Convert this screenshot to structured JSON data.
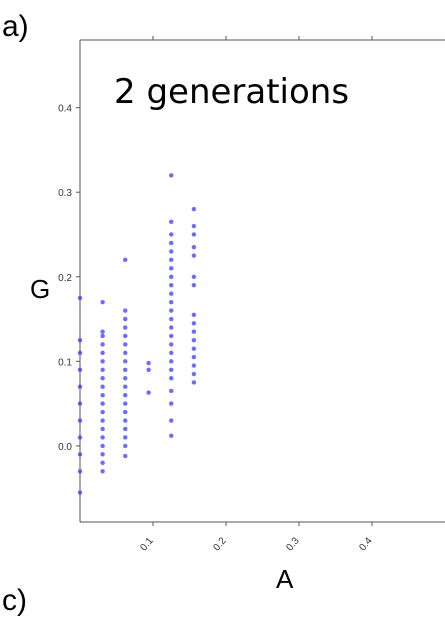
{
  "panel_labels": {
    "top": "a)",
    "bottom": "c)"
  },
  "chart_data": {
    "type": "scatter",
    "title": "2 generations",
    "xlabel": "A",
    "ylabel": "G",
    "xlim": [
      0.0,
      0.5
    ],
    "ylim": [
      -0.09,
      0.48
    ],
    "xticks": [
      0.1,
      0.2,
      0.3,
      0.4
    ],
    "xtick_labels": [
      "0.1",
      "0.2",
      "0.3",
      "0.4"
    ],
    "yticks": [
      0.0,
      0.1,
      0.2,
      0.3,
      0.4
    ],
    "ytick_labels": [
      "0.0",
      "0.1",
      "0.2",
      "0.3",
      "0.4"
    ],
    "grid": false,
    "point_color": "#3a3aff",
    "points": [
      {
        "x": 0.0,
        "y": -0.055
      },
      {
        "x": 0.0,
        "y": -0.03
      },
      {
        "x": 0.0,
        "y": -0.01
      },
      {
        "x": 0.0,
        "y": 0.01
      },
      {
        "x": 0.0,
        "y": 0.03
      },
      {
        "x": 0.0,
        "y": 0.05
      },
      {
        "x": 0.0,
        "y": 0.07
      },
      {
        "x": 0.0,
        "y": 0.09
      },
      {
        "x": 0.0,
        "y": 0.11
      },
      {
        "x": 0.0,
        "y": 0.125
      },
      {
        "x": 0.0,
        "y": 0.175
      },
      {
        "x": 0.031,
        "y": -0.03
      },
      {
        "x": 0.031,
        "y": -0.02
      },
      {
        "x": 0.031,
        "y": -0.01
      },
      {
        "x": 0.031,
        "y": 0.0
      },
      {
        "x": 0.031,
        "y": 0.01
      },
      {
        "x": 0.031,
        "y": 0.02
      },
      {
        "x": 0.031,
        "y": 0.03
      },
      {
        "x": 0.031,
        "y": 0.04
      },
      {
        "x": 0.031,
        "y": 0.05
      },
      {
        "x": 0.031,
        "y": 0.06
      },
      {
        "x": 0.031,
        "y": 0.07
      },
      {
        "x": 0.031,
        "y": 0.08
      },
      {
        "x": 0.031,
        "y": 0.09
      },
      {
        "x": 0.031,
        "y": 0.1
      },
      {
        "x": 0.031,
        "y": 0.11
      },
      {
        "x": 0.031,
        "y": 0.12
      },
      {
        "x": 0.031,
        "y": 0.13
      },
      {
        "x": 0.031,
        "y": 0.135
      },
      {
        "x": 0.031,
        "y": 0.17
      },
      {
        "x": 0.062,
        "y": -0.012
      },
      {
        "x": 0.062,
        "y": 0.0
      },
      {
        "x": 0.062,
        "y": 0.01
      },
      {
        "x": 0.062,
        "y": 0.02
      },
      {
        "x": 0.062,
        "y": 0.03
      },
      {
        "x": 0.062,
        "y": 0.04
      },
      {
        "x": 0.062,
        "y": 0.05
      },
      {
        "x": 0.062,
        "y": 0.06
      },
      {
        "x": 0.062,
        "y": 0.07
      },
      {
        "x": 0.062,
        "y": 0.08
      },
      {
        "x": 0.062,
        "y": 0.09
      },
      {
        "x": 0.062,
        "y": 0.1
      },
      {
        "x": 0.062,
        "y": 0.11
      },
      {
        "x": 0.062,
        "y": 0.12
      },
      {
        "x": 0.062,
        "y": 0.13
      },
      {
        "x": 0.062,
        "y": 0.14
      },
      {
        "x": 0.062,
        "y": 0.15
      },
      {
        "x": 0.062,
        "y": 0.16
      },
      {
        "x": 0.062,
        "y": 0.22
      },
      {
        "x": 0.094,
        "y": 0.063
      },
      {
        "x": 0.094,
        "y": 0.09
      },
      {
        "x": 0.094,
        "y": 0.098
      },
      {
        "x": 0.125,
        "y": 0.012
      },
      {
        "x": 0.125,
        "y": 0.03
      },
      {
        "x": 0.125,
        "y": 0.05
      },
      {
        "x": 0.125,
        "y": 0.065
      },
      {
        "x": 0.125,
        "y": 0.08
      },
      {
        "x": 0.125,
        "y": 0.09
      },
      {
        "x": 0.125,
        "y": 0.1
      },
      {
        "x": 0.125,
        "y": 0.11
      },
      {
        "x": 0.125,
        "y": 0.12
      },
      {
        "x": 0.125,
        "y": 0.13
      },
      {
        "x": 0.125,
        "y": 0.14
      },
      {
        "x": 0.125,
        "y": 0.15
      },
      {
        "x": 0.125,
        "y": 0.16
      },
      {
        "x": 0.125,
        "y": 0.17
      },
      {
        "x": 0.125,
        "y": 0.18
      },
      {
        "x": 0.125,
        "y": 0.19
      },
      {
        "x": 0.125,
        "y": 0.2
      },
      {
        "x": 0.125,
        "y": 0.21
      },
      {
        "x": 0.125,
        "y": 0.22
      },
      {
        "x": 0.125,
        "y": 0.23
      },
      {
        "x": 0.125,
        "y": 0.24
      },
      {
        "x": 0.125,
        "y": 0.25
      },
      {
        "x": 0.125,
        "y": 0.265
      },
      {
        "x": 0.125,
        "y": 0.32
      },
      {
        "x": 0.156,
        "y": 0.075
      },
      {
        "x": 0.156,
        "y": 0.085
      },
      {
        "x": 0.156,
        "y": 0.095
      },
      {
        "x": 0.156,
        "y": 0.105
      },
      {
        "x": 0.156,
        "y": 0.115
      },
      {
        "x": 0.156,
        "y": 0.125
      },
      {
        "x": 0.156,
        "y": 0.135
      },
      {
        "x": 0.156,
        "y": 0.145
      },
      {
        "x": 0.156,
        "y": 0.155
      },
      {
        "x": 0.156,
        "y": 0.19
      },
      {
        "x": 0.156,
        "y": 0.2
      },
      {
        "x": 0.156,
        "y": 0.225
      },
      {
        "x": 0.156,
        "y": 0.235
      },
      {
        "x": 0.156,
        "y": 0.25
      },
      {
        "x": 0.156,
        "y": 0.26
      },
      {
        "x": 0.156,
        "y": 0.28
      }
    ]
  }
}
